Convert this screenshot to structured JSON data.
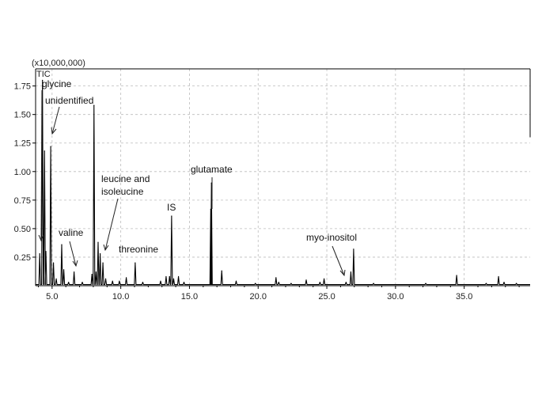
{
  "chart_data": {
    "type": "line",
    "title": "",
    "trace_label": "TIC",
    "y_multiplier_label": "(x10,000,000)",
    "xlabel": "",
    "ylabel": "",
    "xlim": [
      3.8,
      39.8
    ],
    "ylim": [
      0,
      1.9
    ],
    "x_ticks": [
      5.0,
      10.0,
      15.0,
      20.0,
      25.0,
      30.0,
      35.0
    ],
    "x_tick_labels": [
      "5.0",
      "10.0",
      "15.0",
      "20.0",
      "25.0",
      "30.0",
      "35.0"
    ],
    "y_ticks": [
      0.25,
      0.5,
      0.75,
      1.0,
      1.25,
      1.5,
      1.75
    ],
    "y_tick_labels": [
      "0.25",
      "0.50",
      "0.75",
      "1.00",
      "1.25",
      "1.50",
      "1.75"
    ],
    "grid": true,
    "baseline": 0.01,
    "peaks": [
      {
        "x": 4.1,
        "y": 0.28
      },
      {
        "x": 4.3,
        "y": 1.8
      },
      {
        "x": 4.45,
        "y": 1.18
      },
      {
        "x": 4.55,
        "y": 0.3
      },
      {
        "x": 4.9,
        "y": 1.22
      },
      {
        "x": 5.1,
        "y": 0.2
      },
      {
        "x": 5.3,
        "y": 0.06
      },
      {
        "x": 5.7,
        "y": 0.36
      },
      {
        "x": 5.85,
        "y": 0.14
      },
      {
        "x": 6.2,
        "y": 0.03
      },
      {
        "x": 6.6,
        "y": 0.12
      },
      {
        "x": 7.2,
        "y": 0.03
      },
      {
        "x": 7.9,
        "y": 0.1
      },
      {
        "x": 8.05,
        "y": 1.58
      },
      {
        "x": 8.2,
        "y": 0.12
      },
      {
        "x": 8.35,
        "y": 0.38
      },
      {
        "x": 8.5,
        "y": 0.28
      },
      {
        "x": 8.7,
        "y": 0.2
      },
      {
        "x": 8.9,
        "y": 0.06
      },
      {
        "x": 9.4,
        "y": 0.04
      },
      {
        "x": 9.9,
        "y": 0.04
      },
      {
        "x": 10.4,
        "y": 0.07
      },
      {
        "x": 11.05,
        "y": 0.2
      },
      {
        "x": 11.6,
        "y": 0.03
      },
      {
        "x": 12.9,
        "y": 0.04
      },
      {
        "x": 13.3,
        "y": 0.08
      },
      {
        "x": 13.55,
        "y": 0.08
      },
      {
        "x": 13.7,
        "y": 0.61
      },
      {
        "x": 13.85,
        "y": 0.06
      },
      {
        "x": 14.2,
        "y": 0.08
      },
      {
        "x": 14.6,
        "y": 0.03
      },
      {
        "x": 16.55,
        "y": 0.67
      },
      {
        "x": 16.6,
        "y": 0.9
      },
      {
        "x": 17.35,
        "y": 0.13
      },
      {
        "x": 18.4,
        "y": 0.04
      },
      {
        "x": 19.8,
        "y": 0.02
      },
      {
        "x": 21.3,
        "y": 0.07
      },
      {
        "x": 21.5,
        "y": 0.03
      },
      {
        "x": 22.4,
        "y": 0.02
      },
      {
        "x": 23.5,
        "y": 0.05
      },
      {
        "x": 24.5,
        "y": 0.03
      },
      {
        "x": 24.8,
        "y": 0.06
      },
      {
        "x": 26.4,
        "y": 0.03
      },
      {
        "x": 26.75,
        "y": 0.12
      },
      {
        "x": 26.95,
        "y": 0.32
      },
      {
        "x": 28.4,
        "y": 0.02
      },
      {
        "x": 32.2,
        "y": 0.02
      },
      {
        "x": 34.45,
        "y": 0.09
      },
      {
        "x": 36.6,
        "y": 0.02
      },
      {
        "x": 37.5,
        "y": 0.08
      },
      {
        "x": 37.9,
        "y": 0.03
      },
      {
        "x": 38.8,
        "y": 0.02
      }
    ],
    "annotations": [
      {
        "lines": [
          "glycine"
        ]
      },
      {
        "lines": [
          "unidentified"
        ]
      },
      {
        "lines": [
          "valine"
        ]
      },
      {
        "lines": [
          "leucine and",
          "isoleucine"
        ]
      },
      {
        "lines": [
          "threonine"
        ]
      },
      {
        "lines": [
          "IS"
        ]
      },
      {
        "lines": [
          "glutamate"
        ]
      },
      {
        "lines": [
          "myo-inositol"
        ]
      }
    ]
  }
}
